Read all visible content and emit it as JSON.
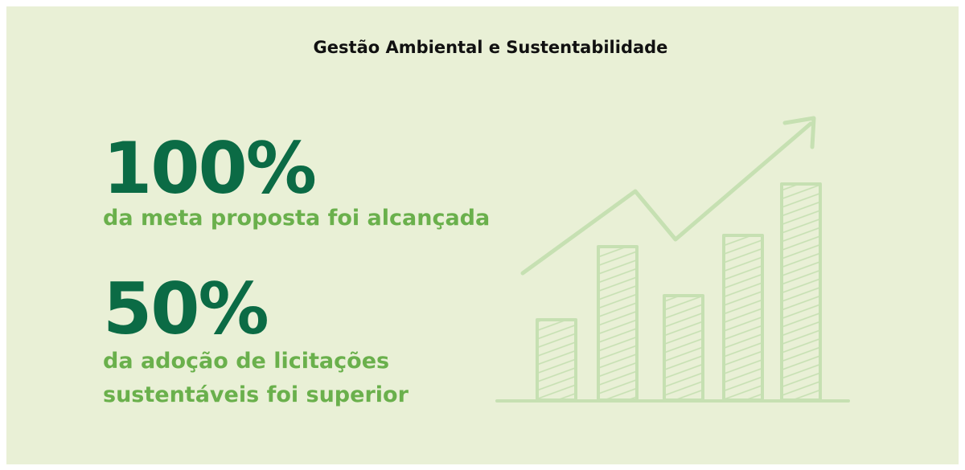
{
  "title": "Gestão Ambiental e Sustentabilidade",
  "stats": [
    {
      "value": "100%",
      "lines": [
        "da meta proposta foi alcançada"
      ]
    },
    {
      "value": "50%",
      "lines": [
        "da adoção de licitações",
        "sustentáveis foi superior"
      ]
    }
  ]
}
